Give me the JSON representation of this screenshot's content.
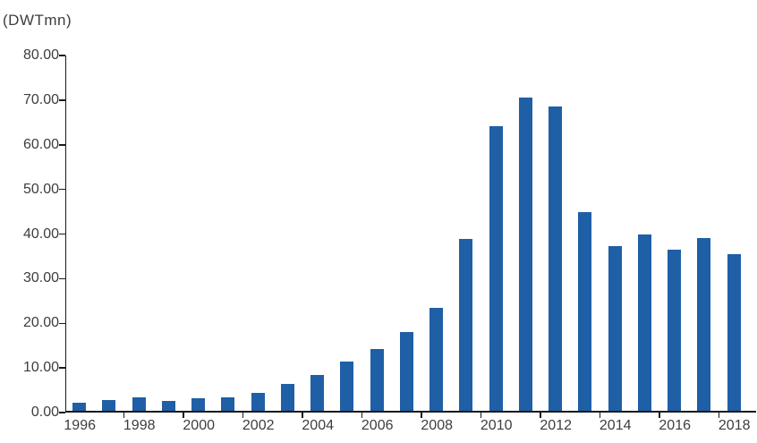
{
  "chart": {
    "unit_label": "(DWTmn)",
    "colors": {
      "bar": "#1F5FA6",
      "axis": "#1A1A1A",
      "text": "#3D3D3D",
      "background": "#FFFFFF"
    }
  },
  "chart_data": {
    "type": "bar",
    "title": "(DWTmn)",
    "categories": [
      "1996",
      "1997",
      "1998",
      "1999",
      "2000",
      "2001",
      "2002",
      "2003",
      "2004",
      "2005",
      "2006",
      "2007",
      "2008",
      "2009",
      "2010",
      "2011",
      "2012",
      "2013",
      "2014",
      "2015",
      "2016",
      "2017",
      "2018"
    ],
    "values": [
      1.8,
      2.4,
      3.0,
      2.2,
      2.9,
      3.1,
      4.1,
      6.0,
      8.0,
      11.0,
      13.9,
      17.8,
      23.1,
      38.7,
      64.0,
      70.5,
      68.5,
      44.8,
      37.0,
      39.7,
      36.3,
      38.9,
      35.2
    ],
    "xlabel": "",
    "ylabel": "DWTmn",
    "ylim": [
      0,
      80
    ],
    "y_ticks": [
      0,
      10,
      20,
      30,
      40,
      50,
      60,
      70,
      80
    ],
    "y_tick_labels": [
      "0.00",
      "10.00",
      "20.00",
      "30.00",
      "40.00",
      "50.00",
      "60.00",
      "70.00",
      "80.00"
    ],
    "x_tick_labels": [
      "1996",
      "1998",
      "2000",
      "2002",
      "2004",
      "2006",
      "2008",
      "2010",
      "2012",
      "2014",
      "2016",
      "2018"
    ],
    "grid": false,
    "legend": false,
    "legend_position": "none"
  }
}
